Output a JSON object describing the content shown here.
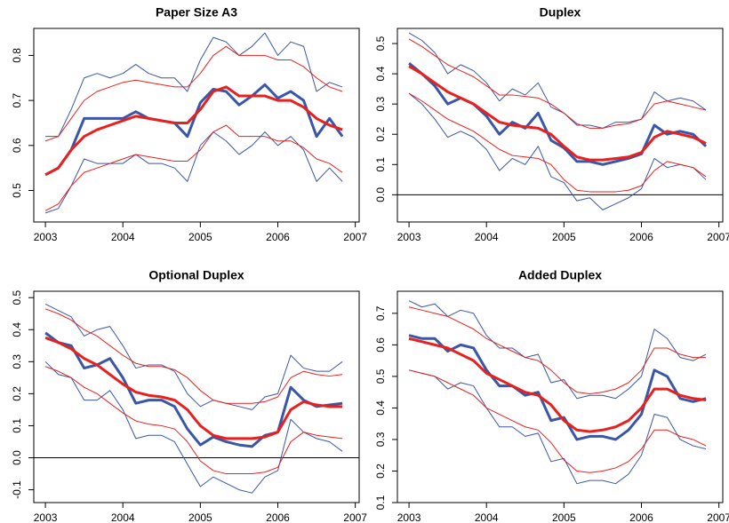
{
  "chart_data": [
    {
      "type": "line",
      "title": "Paper Size A3",
      "x": [
        2003,
        2003.167,
        2003.333,
        2003.5,
        2003.667,
        2003.833,
        2004,
        2004.167,
        2004.333,
        2004.5,
        2004.667,
        2004.833,
        2005,
        2005.167,
        2005.333,
        2005.5,
        2005.667,
        2005.833,
        2006,
        2006.167,
        2006.333,
        2006.5,
        2006.667,
        2006.833
      ],
      "xlim": [
        2002.85,
        2007.05
      ],
      "xticks": [
        2003,
        2004,
        2005,
        2006,
        2007
      ],
      "ylim": [
        0.43,
        0.86
      ],
      "yticks": [
        0.5,
        0.6,
        0.7,
        0.8
      ],
      "series": [
        {
          "color": "#3a56a6",
          "line_width": 1,
          "values": [
            0.62,
            0.62,
            0.68,
            0.75,
            0.76,
            0.75,
            0.76,
            0.78,
            0.76,
            0.75,
            0.75,
            0.72,
            0.79,
            0.84,
            0.83,
            0.8,
            0.82,
            0.85,
            0.8,
            0.83,
            0.82,
            0.72,
            0.74,
            0.73
          ]
        },
        {
          "color": "#3a56a6",
          "line_width": 1,
          "values": [
            0.45,
            0.46,
            0.51,
            0.57,
            0.56,
            0.56,
            0.56,
            0.58,
            0.56,
            0.56,
            0.55,
            0.52,
            0.6,
            0.63,
            0.61,
            0.58,
            0.6,
            0.63,
            0.6,
            0.62,
            0.59,
            0.52,
            0.55,
            0.52
          ]
        },
        {
          "color": "#e8201e",
          "line_width": 1,
          "values": [
            0.61,
            0.62,
            0.66,
            0.7,
            0.72,
            0.73,
            0.74,
            0.745,
            0.74,
            0.735,
            0.73,
            0.73,
            0.76,
            0.8,
            0.82,
            0.8,
            0.8,
            0.8,
            0.79,
            0.79,
            0.775,
            0.75,
            0.73,
            0.72
          ]
        },
        {
          "color": "#e8201e",
          "line_width": 1,
          "values": [
            0.455,
            0.47,
            0.51,
            0.54,
            0.55,
            0.56,
            0.57,
            0.58,
            0.575,
            0.57,
            0.565,
            0.565,
            0.59,
            0.63,
            0.645,
            0.62,
            0.62,
            0.62,
            0.61,
            0.61,
            0.595,
            0.57,
            0.56,
            0.54
          ]
        },
        {
          "color": "#3a56a6",
          "line_width": 3,
          "values": [
            0.535,
            0.55,
            0.59,
            0.66,
            0.66,
            0.66,
            0.66,
            0.675,
            0.66,
            0.655,
            0.65,
            0.62,
            0.695,
            0.725,
            0.72,
            0.69,
            0.71,
            0.735,
            0.705,
            0.72,
            0.7,
            0.62,
            0.66,
            0.62
          ]
        },
        {
          "color": "#e8201e",
          "line_width": 3,
          "values": [
            0.535,
            0.55,
            0.59,
            0.62,
            0.635,
            0.645,
            0.655,
            0.665,
            0.66,
            0.655,
            0.65,
            0.65,
            0.68,
            0.72,
            0.73,
            0.71,
            0.71,
            0.71,
            0.7,
            0.7,
            0.685,
            0.66,
            0.645,
            0.635
          ]
        }
      ]
    },
    {
      "type": "line",
      "title": "Duplex",
      "x": [
        2003,
        2003.167,
        2003.333,
        2003.5,
        2003.667,
        2003.833,
        2004,
        2004.167,
        2004.333,
        2004.5,
        2004.667,
        2004.833,
        2005,
        2005.167,
        2005.333,
        2005.5,
        2005.667,
        2005.833,
        2006,
        2006.167,
        2006.333,
        2006.5,
        2006.667,
        2006.833
      ],
      "xlim": [
        2002.85,
        2007.05
      ],
      "xticks": [
        2003,
        2004,
        2005,
        2006,
        2007
      ],
      "ylim": [
        -0.09,
        0.55
      ],
      "yticks": [
        {
          "value": 0,
          "label": "0.0"
        },
        0.1,
        0.2,
        0.3,
        0.4,
        0.5
      ],
      "hline": 0,
      "series": [
        {
          "color": "#3a56a6",
          "line_width": 1,
          "values": [
            0.535,
            0.51,
            0.47,
            0.4,
            0.43,
            0.41,
            0.37,
            0.31,
            0.35,
            0.33,
            0.37,
            0.29,
            0.27,
            0.23,
            0.23,
            0.22,
            0.24,
            0.24,
            0.25,
            0.34,
            0.31,
            0.32,
            0.31,
            0.28
          ]
        },
        {
          "color": "#3a56a6",
          "line_width": 1,
          "values": [
            0.335,
            0.3,
            0.25,
            0.19,
            0.21,
            0.19,
            0.15,
            0.08,
            0.12,
            0.1,
            0.16,
            0.06,
            0.04,
            -0.02,
            -0.01,
            -0.05,
            -0.03,
            -0.01,
            0.02,
            0.12,
            0.09,
            0.1,
            0.09,
            0.05
          ]
        },
        {
          "color": "#e8201e",
          "line_width": 1,
          "values": [
            0.515,
            0.49,
            0.46,
            0.43,
            0.41,
            0.39,
            0.36,
            0.33,
            0.33,
            0.325,
            0.32,
            0.3,
            0.27,
            0.235,
            0.22,
            0.22,
            0.23,
            0.235,
            0.25,
            0.3,
            0.31,
            0.3,
            0.29,
            0.28
          ]
        },
        {
          "color": "#e8201e",
          "line_width": 1,
          "values": [
            0.335,
            0.31,
            0.28,
            0.25,
            0.23,
            0.21,
            0.18,
            0.15,
            0.13,
            0.125,
            0.12,
            0.1,
            0.05,
            0.015,
            0.01,
            0.01,
            0.01,
            0.015,
            0.03,
            0.08,
            0.11,
            0.1,
            0.09,
            0.06
          ]
        },
        {
          "color": "#3a56a6",
          "line_width": 3,
          "values": [
            0.435,
            0.4,
            0.36,
            0.3,
            0.32,
            0.3,
            0.26,
            0.2,
            0.24,
            0.22,
            0.27,
            0.18,
            0.155,
            0.11,
            0.11,
            0.1,
            0.11,
            0.12,
            0.135,
            0.23,
            0.2,
            0.21,
            0.2,
            0.16
          ]
        },
        {
          "color": "#e8201e",
          "line_width": 3,
          "values": [
            0.425,
            0.4,
            0.37,
            0.34,
            0.32,
            0.3,
            0.27,
            0.24,
            0.23,
            0.225,
            0.22,
            0.2,
            0.16,
            0.125,
            0.115,
            0.115,
            0.12,
            0.125,
            0.14,
            0.19,
            0.21,
            0.2,
            0.19,
            0.17
          ]
        }
      ]
    },
    {
      "type": "line",
      "title": "Optional Duplex",
      "x": [
        2003,
        2003.167,
        2003.333,
        2003.5,
        2003.667,
        2003.833,
        2004,
        2004.167,
        2004.333,
        2004.5,
        2004.667,
        2004.833,
        2005,
        2005.167,
        2005.333,
        2005.5,
        2005.667,
        2005.833,
        2006,
        2006.167,
        2006.333,
        2006.5,
        2006.667,
        2006.833
      ],
      "xlim": [
        2002.85,
        2007.05
      ],
      "xticks": [
        2003,
        2004,
        2005,
        2006,
        2007
      ],
      "ylim": [
        -0.14,
        0.52
      ],
      "yticks": [
        -0.1,
        {
          "value": 0,
          "label": "0.0"
        },
        0.1,
        0.2,
        0.3,
        0.4,
        0.5
      ],
      "hline": 0,
      "series": [
        {
          "color": "#3a56a6",
          "line_width": 1,
          "values": [
            0.48,
            0.46,
            0.44,
            0.38,
            0.4,
            0.41,
            0.35,
            0.28,
            0.29,
            0.29,
            0.27,
            0.2,
            0.16,
            0.18,
            0.17,
            0.16,
            0.15,
            0.19,
            0.2,
            0.32,
            0.28,
            0.27,
            0.27,
            0.3
          ]
        },
        {
          "color": "#3a56a6",
          "line_width": 1,
          "values": [
            0.3,
            0.26,
            0.25,
            0.18,
            0.18,
            0.21,
            0.15,
            0.06,
            0.07,
            0.07,
            0.05,
            -0.02,
            -0.09,
            -0.06,
            -0.08,
            -0.1,
            -0.11,
            -0.06,
            -0.04,
            0.12,
            0.08,
            0.06,
            0.05,
            0.02
          ]
        },
        {
          "color": "#e8201e",
          "line_width": 1,
          "values": [
            0.465,
            0.45,
            0.43,
            0.4,
            0.38,
            0.35,
            0.32,
            0.295,
            0.285,
            0.285,
            0.275,
            0.25,
            0.21,
            0.18,
            0.17,
            0.17,
            0.17,
            0.175,
            0.19,
            0.25,
            0.27,
            0.26,
            0.255,
            0.26
          ]
        },
        {
          "color": "#e8201e",
          "line_width": 1,
          "values": [
            0.285,
            0.27,
            0.25,
            0.22,
            0.2,
            0.17,
            0.14,
            0.115,
            0.105,
            0.1,
            0.09,
            0.05,
            -0.01,
            -0.04,
            -0.05,
            -0.05,
            -0.05,
            -0.045,
            -0.03,
            0.05,
            0.08,
            0.07,
            0.065,
            0.06
          ]
        },
        {
          "color": "#3a56a6",
          "line_width": 3,
          "values": [
            0.39,
            0.36,
            0.35,
            0.28,
            0.29,
            0.31,
            0.25,
            0.17,
            0.18,
            0.18,
            0.16,
            0.09,
            0.04,
            0.065,
            0.05,
            0.04,
            0.035,
            0.07,
            0.08,
            0.22,
            0.18,
            0.16,
            0.165,
            0.17
          ]
        },
        {
          "color": "#e8201e",
          "line_width": 3,
          "values": [
            0.375,
            0.36,
            0.34,
            0.31,
            0.29,
            0.26,
            0.23,
            0.205,
            0.195,
            0.19,
            0.18,
            0.15,
            0.1,
            0.07,
            0.06,
            0.06,
            0.06,
            0.065,
            0.08,
            0.15,
            0.175,
            0.165,
            0.16,
            0.16
          ]
        }
      ]
    },
    {
      "type": "line",
      "title": "Added Duplex",
      "x": [
        2003,
        2003.167,
        2003.333,
        2003.5,
        2003.667,
        2003.833,
        2004,
        2004.167,
        2004.333,
        2004.5,
        2004.667,
        2004.833,
        2005,
        2005.167,
        2005.333,
        2005.5,
        2005.667,
        2005.833,
        2006,
        2006.167,
        2006.333,
        2006.5,
        2006.667,
        2006.833
      ],
      "xlim": [
        2002.85,
        2007.05
      ],
      "xticks": [
        2003,
        2004,
        2005,
        2006,
        2007
      ],
      "ylim": [
        0.1,
        0.77
      ],
      "yticks": [
        0.1,
        0.2,
        0.3,
        0.4,
        0.5,
        0.6,
        0.7
      ],
      "series": [
        {
          "color": "#3a56a6",
          "line_width": 1,
          "values": [
            0.74,
            0.72,
            0.73,
            0.69,
            0.71,
            0.7,
            0.63,
            0.59,
            0.59,
            0.56,
            0.57,
            0.48,
            0.49,
            0.43,
            0.44,
            0.44,
            0.43,
            0.46,
            0.5,
            0.65,
            0.62,
            0.56,
            0.55,
            0.57
          ]
        },
        {
          "color": "#3a56a6",
          "line_width": 1,
          "values": [
            0.52,
            0.51,
            0.5,
            0.46,
            0.48,
            0.47,
            0.4,
            0.34,
            0.34,
            0.31,
            0.32,
            0.23,
            0.24,
            0.16,
            0.17,
            0.17,
            0.16,
            0.19,
            0.25,
            0.38,
            0.37,
            0.3,
            0.28,
            0.27
          ]
        },
        {
          "color": "#e8201e",
          "line_width": 1,
          "values": [
            0.72,
            0.71,
            0.7,
            0.69,
            0.67,
            0.65,
            0.62,
            0.6,
            0.58,
            0.56,
            0.55,
            0.52,
            0.48,
            0.45,
            0.445,
            0.45,
            0.46,
            0.48,
            0.52,
            0.59,
            0.59,
            0.57,
            0.56,
            0.56
          ]
        },
        {
          "color": "#e8201e",
          "line_width": 1,
          "values": [
            0.52,
            0.51,
            0.5,
            0.48,
            0.46,
            0.44,
            0.4,
            0.38,
            0.36,
            0.34,
            0.33,
            0.29,
            0.235,
            0.2,
            0.195,
            0.2,
            0.21,
            0.23,
            0.27,
            0.33,
            0.33,
            0.31,
            0.3,
            0.28
          ]
        },
        {
          "color": "#3a56a6",
          "line_width": 3,
          "values": [
            0.63,
            0.62,
            0.62,
            0.58,
            0.6,
            0.59,
            0.52,
            0.47,
            0.47,
            0.44,
            0.45,
            0.36,
            0.37,
            0.3,
            0.31,
            0.31,
            0.3,
            0.33,
            0.38,
            0.52,
            0.5,
            0.43,
            0.42,
            0.43
          ]
        },
        {
          "color": "#e8201e",
          "line_width": 3,
          "values": [
            0.62,
            0.61,
            0.6,
            0.59,
            0.57,
            0.55,
            0.51,
            0.49,
            0.47,
            0.45,
            0.44,
            0.41,
            0.36,
            0.33,
            0.325,
            0.33,
            0.34,
            0.36,
            0.4,
            0.46,
            0.46,
            0.44,
            0.43,
            0.425
          ]
        }
      ]
    }
  ]
}
